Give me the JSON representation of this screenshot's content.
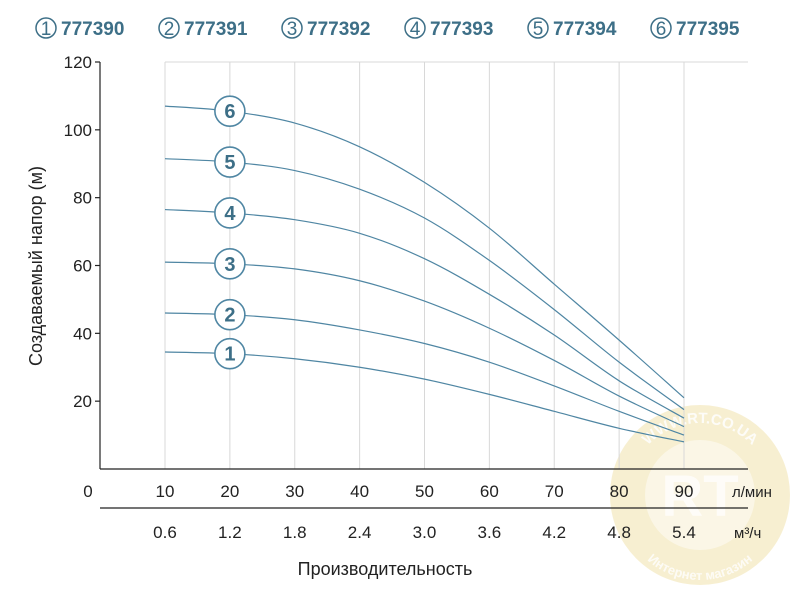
{
  "legend": [
    {
      "num": "1",
      "code": "777390"
    },
    {
      "num": "2",
      "code": "777391"
    },
    {
      "num": "3",
      "code": "777392"
    },
    {
      "num": "4",
      "code": "777393"
    },
    {
      "num": "5",
      "code": "777394"
    },
    {
      "num": "6",
      "code": "777395"
    }
  ],
  "watermark": {
    "text": "WWW.RT.CO.UA",
    "logo_text": "RT",
    "bottom_text": "Интернет магазин"
  },
  "colors": {
    "curve": "#4f86a3",
    "label": "#3d6f87",
    "axis": "#222222",
    "grid": "#d8d8d8",
    "watermark": "#e8d27a"
  },
  "chart_data": {
    "type": "line",
    "ylabel": "Создаваемый напор (м)",
    "xlabel": "Производительность",
    "x_unit_primary": "л/мин",
    "x_unit_secondary": "м³/ч",
    "x_origin_label": "0",
    "ylim": [
      0,
      120
    ],
    "xlim": [
      0,
      95
    ],
    "y_ticks": [
      "20",
      "40",
      "60",
      "80",
      "100",
      "120"
    ],
    "x_ticks_lpm": [
      "10",
      "20",
      "30",
      "40",
      "50",
      "60",
      "70",
      "80",
      "90"
    ],
    "x_ticks_m3h": [
      "0.6",
      "1.2",
      "1.8",
      "2.4",
      "3.0",
      "3.6",
      "4.2",
      "4.8",
      "5.4"
    ],
    "grid": "vertical",
    "series": [
      {
        "name": "1",
        "x": [
          10,
          20,
          30,
          40,
          50,
          60,
          70,
          80,
          90
        ],
        "y": [
          34.5,
          34,
          32.5,
          30,
          26.5,
          22,
          17,
          12,
          8
        ]
      },
      {
        "name": "2",
        "x": [
          10,
          20,
          30,
          40,
          50,
          60,
          70,
          80,
          90
        ],
        "y": [
          46,
          45.5,
          44,
          41,
          37,
          31.5,
          24.5,
          17,
          10
        ]
      },
      {
        "name": "3",
        "x": [
          10,
          20,
          30,
          40,
          50,
          60,
          70,
          80,
          90
        ],
        "y": [
          61,
          60.5,
          59,
          55.5,
          49.5,
          41.5,
          32,
          21.5,
          12.5
        ]
      },
      {
        "name": "4",
        "x": [
          10,
          20,
          30,
          40,
          50,
          60,
          70,
          80,
          90
        ],
        "y": [
          76.5,
          75.5,
          73.5,
          69.5,
          62,
          51.5,
          39.5,
          26,
          15
        ]
      },
      {
        "name": "5",
        "x": [
          10,
          20,
          30,
          40,
          50,
          60,
          70,
          80,
          90
        ],
        "y": [
          91.5,
          90.5,
          88,
          82.5,
          74,
          61.5,
          47,
          31.5,
          17.5
        ]
      },
      {
        "name": "6",
        "x": [
          10,
          20,
          30,
          40,
          50,
          60,
          70,
          80,
          90
        ],
        "y": [
          107,
          105.5,
          102,
          95,
          84.5,
          71,
          54.5,
          38,
          21
        ]
      }
    ],
    "label_x": 20
  }
}
